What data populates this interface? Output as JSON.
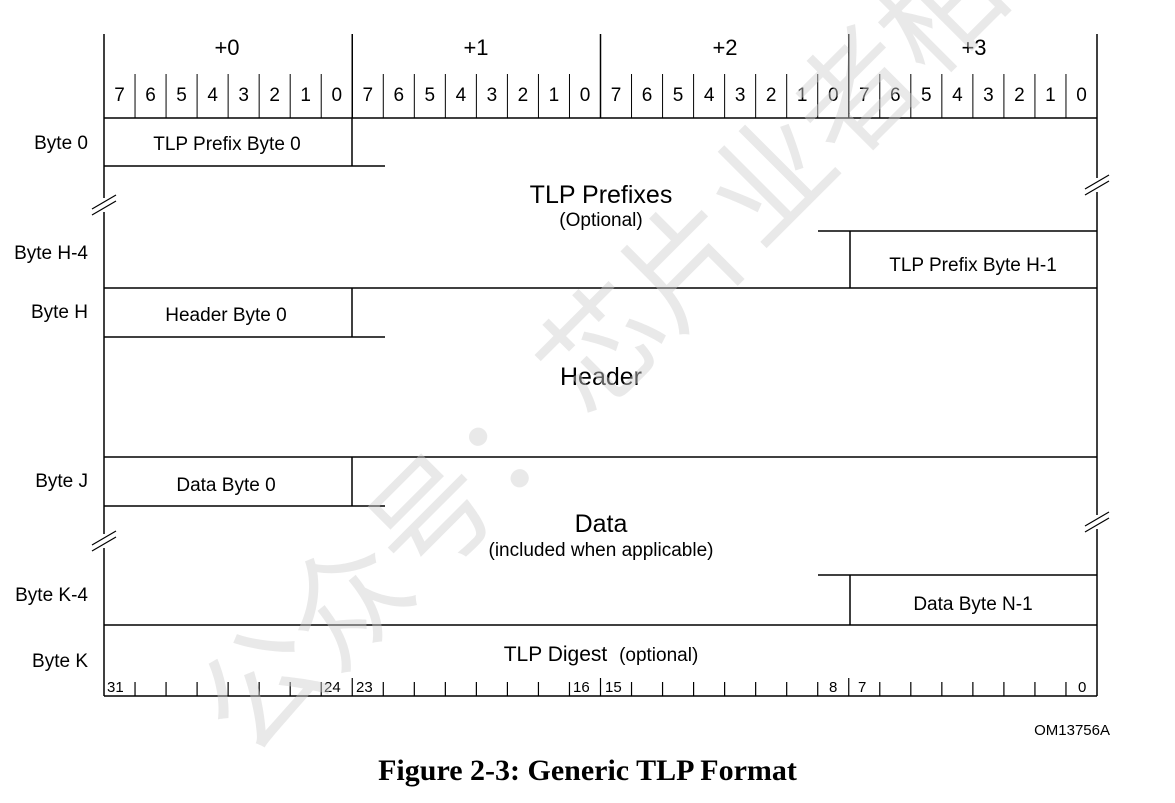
{
  "byte_offsets": [
    "+0",
    "+1",
    "+2",
    "+3"
  ],
  "bit_labels": [
    "7",
    "6",
    "5",
    "4",
    "3",
    "2",
    "1",
    "0"
  ],
  "row_labels": {
    "byte0": "Byte 0",
    "byteH4": "Byte H-4",
    "byteH": "Byte H",
    "byteJ": "Byte J",
    "byteK4": "Byte K-4",
    "byteK": "Byte K"
  },
  "fields": {
    "tlp_prefix_byte_0": "TLP Prefix Byte 0",
    "tlp_prefixes": "TLP Prefixes",
    "tlp_prefixes_note": "(Optional)",
    "tlp_prefix_byte_h1": "TLP Prefix Byte H-1",
    "header_byte_0": "Header Byte 0",
    "header": "Header",
    "data_byte_0": "Data Byte 0",
    "data": "Data",
    "data_note": "(included when applicable)",
    "data_byte_n1": "Data Byte N-1",
    "tlp_digest": "TLP Digest",
    "tlp_digest_note": "(optional)"
  },
  "bit_ruler": [
    "31",
    "24",
    "23",
    "16",
    "15",
    "8",
    "7",
    "0"
  ],
  "doc_id": "OM13756A",
  "caption": "Figure 2-3:  Generic TLP Format",
  "watermark": "公众号：芯片业者柏瀚双"
}
